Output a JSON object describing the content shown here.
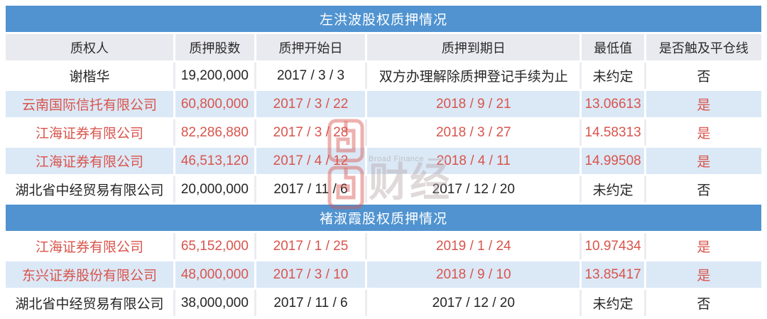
{
  "colors": {
    "title_bar_blue": "#5093d0",
    "header_row_bg": "#e9e9f0",
    "shaded_row_bg": "#dbe8f6",
    "alert_red": "#d9544c",
    "text_black": "#262626"
  },
  "columns": [
    "质权人",
    "质押股数",
    "质押开始日",
    "质押到期日",
    "最低值",
    "是否触及平仓线"
  ],
  "tables": [
    {
      "title": "左洪波股权质押情况",
      "show_column_header": true,
      "rows": [
        {
          "cells": [
            "谢楷华",
            "19,200,000",
            "2017 / 3 / 3",
            "双方办理解除质押登记手续为止",
            "未约定",
            "否"
          ],
          "alert": false
        },
        {
          "cells": [
            "云南国际信托有限公司",
            "60,800,000",
            "2017 / 3 / 22",
            "2018 / 9 / 21",
            "13.06613",
            "是"
          ],
          "alert": true
        },
        {
          "cells": [
            "江海证券有限公司",
            "82,286,880",
            "2017 / 3 / 28",
            "2018 / 3 / 27",
            "14.58313",
            "是"
          ],
          "alert": true
        },
        {
          "cells": [
            "江海证券有限公司",
            "46,513,120",
            "2017 / 4 / 12",
            "2018 / 4 / 11",
            "14.99508",
            "是"
          ],
          "alert": true
        },
        {
          "cells": [
            "湖北省中经贸易有限公司",
            "20,000,000",
            "2017 / 11 / 6",
            "2017 / 12 / 20",
            "未约定",
            "否"
          ],
          "alert": false
        }
      ]
    },
    {
      "title": "褚淑霞股权质押情况",
      "show_column_header": false,
      "rows": [
        {
          "cells": [
            "江海证券有限公司",
            "65,152,000",
            "2017 / 1 / 25",
            "2019 / 1 / 24",
            "10.97434",
            "是"
          ],
          "alert": true
        },
        {
          "cells": [
            "东兴证券股份有限公司",
            "48,000,000",
            "2017 / 3 / 10",
            "2018 / 9 / 10",
            "13.85417",
            "是"
          ],
          "alert": true
        },
        {
          "cells": [
            "湖北省中经贸易有限公司",
            "38,000,000",
            "2017 / 11 / 6",
            "2017 / 12 / 20",
            "未约定",
            "否"
          ],
          "alert": false
        }
      ]
    }
  ],
  "watermark": {
    "brand_en": "Broad Finance",
    "brand_cn": "财经"
  },
  "chart_data": [
    {
      "type": "table",
      "title": "左洪波股权质押情况",
      "columns": [
        "质权人",
        "质押股数",
        "质押开始日",
        "质押到期日",
        "最低值",
        "是否触及平仓线"
      ],
      "rows": [
        [
          "谢楷华",
          "19,200,000",
          "2017 / 3 / 3",
          "双方办理解除质押登记手续为止",
          "未约定",
          "否"
        ],
        [
          "云南国际信托有限公司",
          "60,800,000",
          "2017 / 3 / 22",
          "2018 / 9 / 21",
          "13.06613",
          "是"
        ],
        [
          "江海证券有限公司",
          "82,286,880",
          "2017 / 3 / 28",
          "2018 / 3 / 27",
          "14.58313",
          "是"
        ],
        [
          "江海证券有限公司",
          "46,513,120",
          "2017 / 4 / 12",
          "2018 / 4 / 11",
          "14.99508",
          "是"
        ],
        [
          "湖北省中经贸易有限公司",
          "20,000,000",
          "2017 / 11 / 6",
          "2017 / 12 / 20",
          "未约定",
          "否"
        ]
      ]
    },
    {
      "type": "table",
      "title": "褚淑霞股权质押情况",
      "columns": [
        "质权人",
        "质押股数",
        "质押开始日",
        "质押到期日",
        "最低值",
        "是否触及平仓线"
      ],
      "rows": [
        [
          "江海证券有限公司",
          "65,152,000",
          "2017 / 1 / 25",
          "2019 / 1 / 24",
          "10.97434",
          "是"
        ],
        [
          "东兴证券股份有限公司",
          "48,000,000",
          "2017 / 3 / 10",
          "2018 / 9 / 10",
          "13.85417",
          "是"
        ],
        [
          "湖北省中经贸易有限公司",
          "38,000,000",
          "2017 / 11 / 6",
          "2017 / 12 / 20",
          "未约定",
          "否"
        ]
      ]
    }
  ]
}
